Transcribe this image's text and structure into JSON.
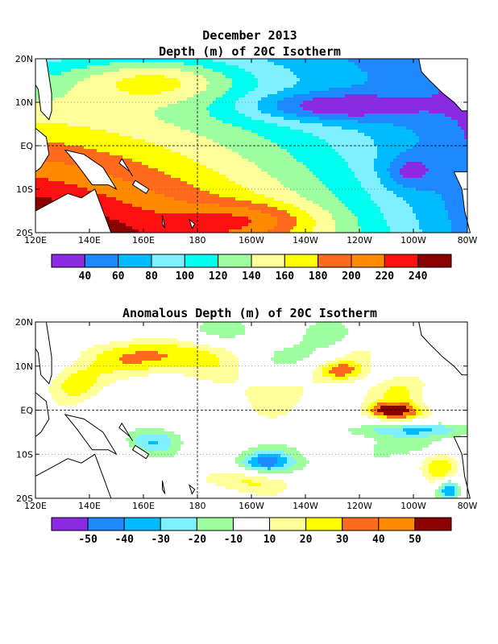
{
  "colors": {
    "depth": [
      "#8a2be2",
      "#1e88ff",
      "#00bcff",
      "#7ff0ff",
      "#00ffee",
      "#9dffa0",
      "#ffff9a",
      "#ffff00",
      "#ff6a1c",
      "#ff8a00",
      "#ff1010",
      "#8b0000"
    ],
    "anomaly": [
      "#8a2be2",
      "#1e88ff",
      "#00bcff",
      "#7ff0ff",
      "#9dffa0",
      "#ffffff",
      "#ffff9a",
      "#ffff00",
      "#ff6a1c",
      "#ff8a00",
      "#8b0000"
    ],
    "land_outline": "#000000"
  },
  "chart_data": [
    {
      "type": "heatmap",
      "title": "December 2013",
      "subtitle": "Depth (m) of 20C Isotherm",
      "x_ticks": [
        "120E",
        "140E",
        "160E",
        "180",
        "160W",
        "140W",
        "120W",
        "100W",
        "80W"
      ],
      "y_ticks": [
        "20N",
        "10N",
        "EQ",
        "10S",
        "20S"
      ],
      "xlim": [
        120,
        280
      ],
      "ylim": [
        -20,
        20
      ],
      "colorbar_labels": [
        "40",
        "60",
        "80",
        "100",
        "120",
        "140",
        "160",
        "180",
        "200",
        "220",
        "240"
      ],
      "levels": [
        40,
        60,
        80,
        100,
        120,
        140,
        160,
        180,
        200,
        220,
        240
      ],
      "field": "depth"
    },
    {
      "type": "heatmap",
      "title": "Anomalous Depth (m) of 20C Isotherm",
      "x_ticks": [
        "120E",
        "140E",
        "160E",
        "180",
        "160W",
        "140W",
        "120W",
        "100W",
        "80W"
      ],
      "y_ticks": [
        "20N",
        "10N",
        "EQ",
        "10S",
        "20S"
      ],
      "xlim": [
        120,
        280
      ],
      "ylim": [
        -20,
        20
      ],
      "colorbar_labels": [
        "-50",
        "-40",
        "-30",
        "-20",
        "-10",
        "10",
        "20",
        "30",
        "40",
        "50"
      ],
      "levels": [
        -50,
        -40,
        -30,
        -20,
        -10,
        10,
        20,
        30,
        40,
        50
      ],
      "field": "anomaly"
    }
  ]
}
